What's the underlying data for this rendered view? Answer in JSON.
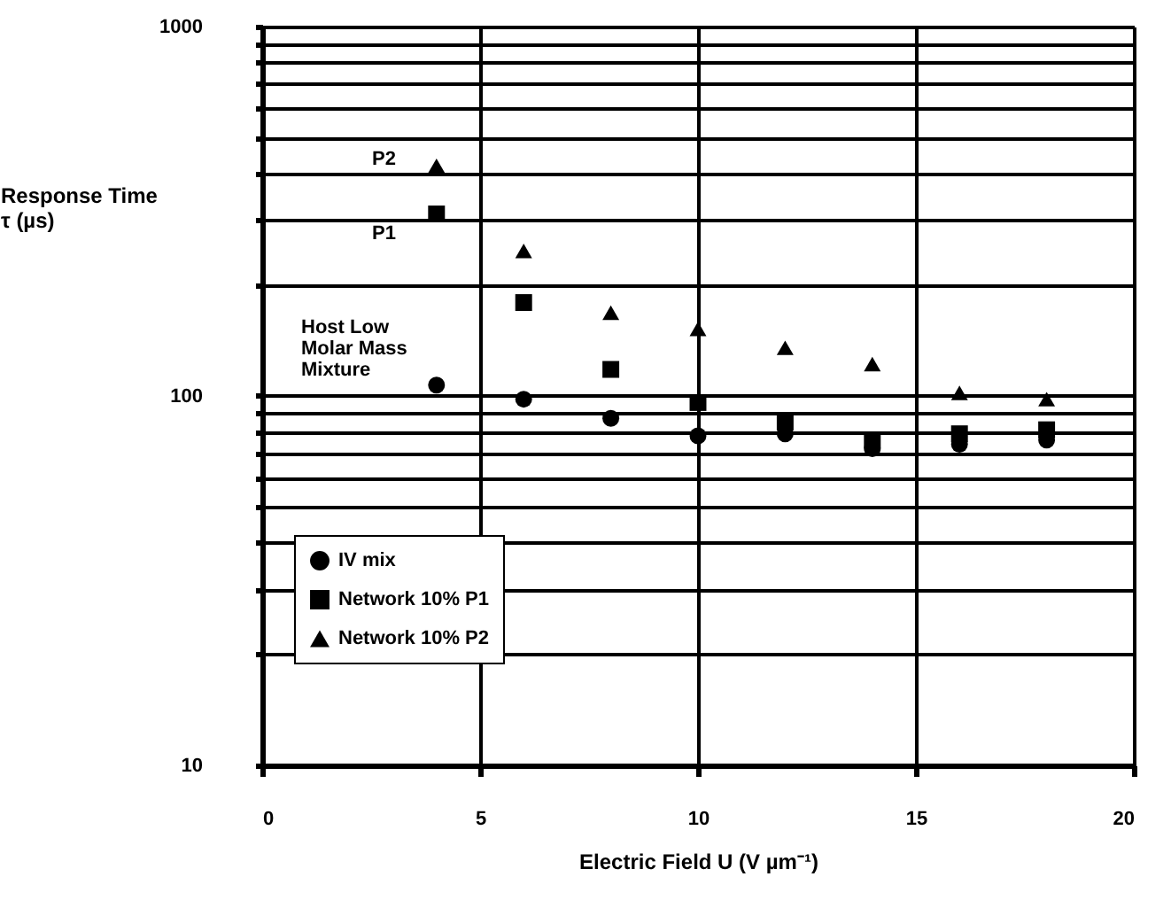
{
  "chart_data": {
    "type": "scatter",
    "xlabel": "Electric Field U (V µm⁻¹)",
    "ylabel": "Response Time\nτ (µs)",
    "x": [
      4,
      6,
      8,
      10,
      12,
      14,
      16,
      18
    ],
    "series": [
      {
        "name": "IV mix",
        "color": "#000000",
        "marker": "circle",
        "values": [
          107,
          98,
          87,
          78,
          79,
          72,
          74,
          76
        ]
      },
      {
        "name": "Network 10% P1",
        "color": "#000000",
        "marker": "square",
        "values": [
          311,
          179,
          118,
          96,
          85,
          76,
          79,
          81
        ]
      },
      {
        "name": "Network 10% P2",
        "color": "#000000",
        "marker": "triangle",
        "values": [
          420,
          247,
          168,
          152,
          135,
          122,
          102,
          98
        ]
      }
    ],
    "xlim": [
      0,
      20
    ],
    "xticks": [
      0,
      5,
      10,
      15,
      20
    ],
    "ylim": [
      10,
      1000
    ],
    "yticks": [
      10,
      {
        "value": 20,
        "label": null
      },
      {
        "value": 30,
        "label": null
      },
      {
        "value": 40,
        "label": null
      },
      {
        "value": 50,
        "label": null
      },
      {
        "value": 60,
        "label": null
      },
      {
        "value": 70,
        "label": null
      },
      {
        "value": 80,
        "label": null
      },
      {
        "value": 90,
        "label": null
      },
      100,
      {
        "value": 200,
        "label": null
      },
      {
        "value": 300,
        "label": null
      },
      {
        "value": 400,
        "label": null
      },
      {
        "value": 500,
        "label": null
      },
      {
        "value": 600,
        "label": null
      },
      {
        "value": 700,
        "label": null
      },
      {
        "value": 800,
        "label": null
      },
      {
        "value": 900,
        "label": null
      },
      1000
    ],
    "log": true,
    "grid": true,
    "legend": "bottom left",
    "annotations": [
      "P2",
      "P1",
      "Host Low\nMolar Mass\nMixture"
    ]
  }
}
